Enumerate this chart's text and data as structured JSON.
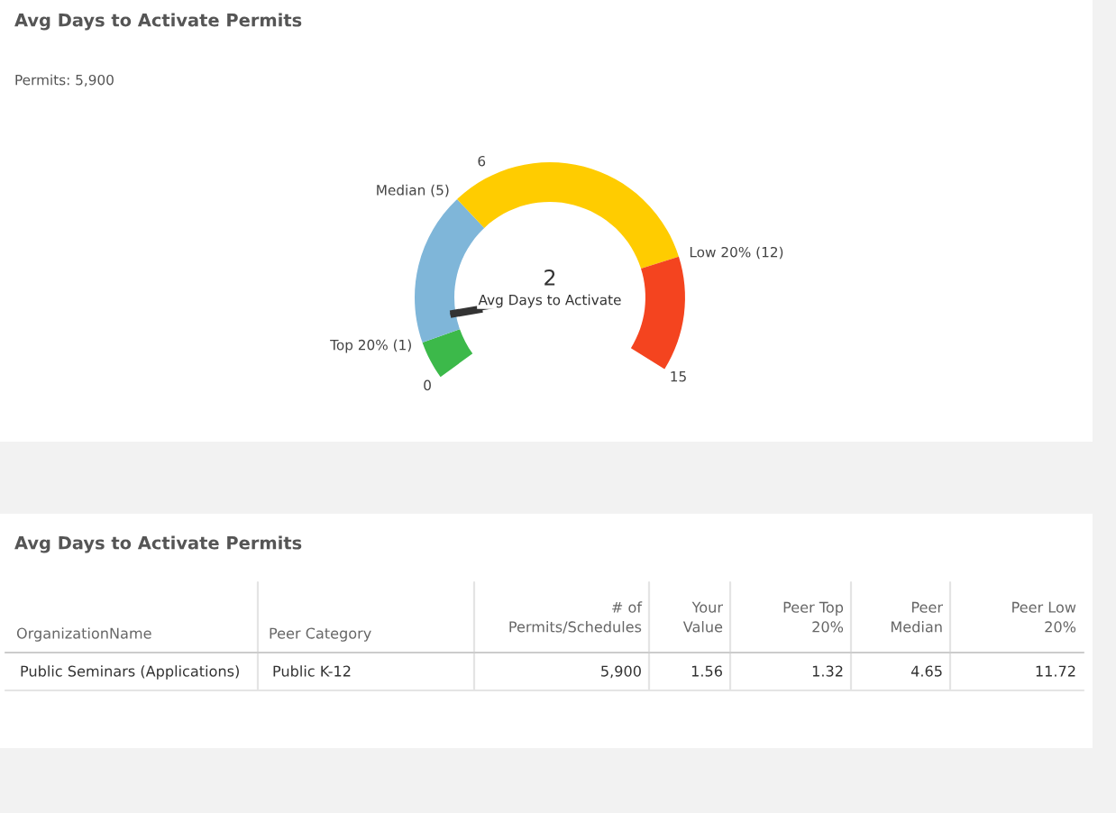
{
  "chart_data": [
    {
      "type": "donut",
      "title": "Avg Days to Activate Permits",
      "categories": [
        "Top 20% (1)",
        "Median (5)",
        "Low 20% (12)",
        null
      ],
      "values": [
        1,
        4,
        7,
        3
      ],
      "colors": [
        "#3cb94a",
        "#7fb6d9",
        "#ffcc00",
        "#f4441f"
      ],
      "needle": "Median (5)",
      "annotations": [
        "Permits: 5,900",
        "0",
        "6",
        "15",
        "2",
        "Avg Days to Activate"
      ]
    },
    {
      "type": "other",
      "title": "Avg Days to Activate Permits",
      "categories": [
        "OrganizationName",
        "Peer Category",
        "# of Permits/Schedules",
        "Your Value",
        "Peer Top 20%",
        "Peer Median",
        "Peer Low 20%"
      ],
      "annotations": [
        "Public Seminars (Applications)",
        "Public K-12",
        "5,900",
        "1.56",
        "1.32",
        "4.65",
        "11.72"
      ]
    }
  ]
}
